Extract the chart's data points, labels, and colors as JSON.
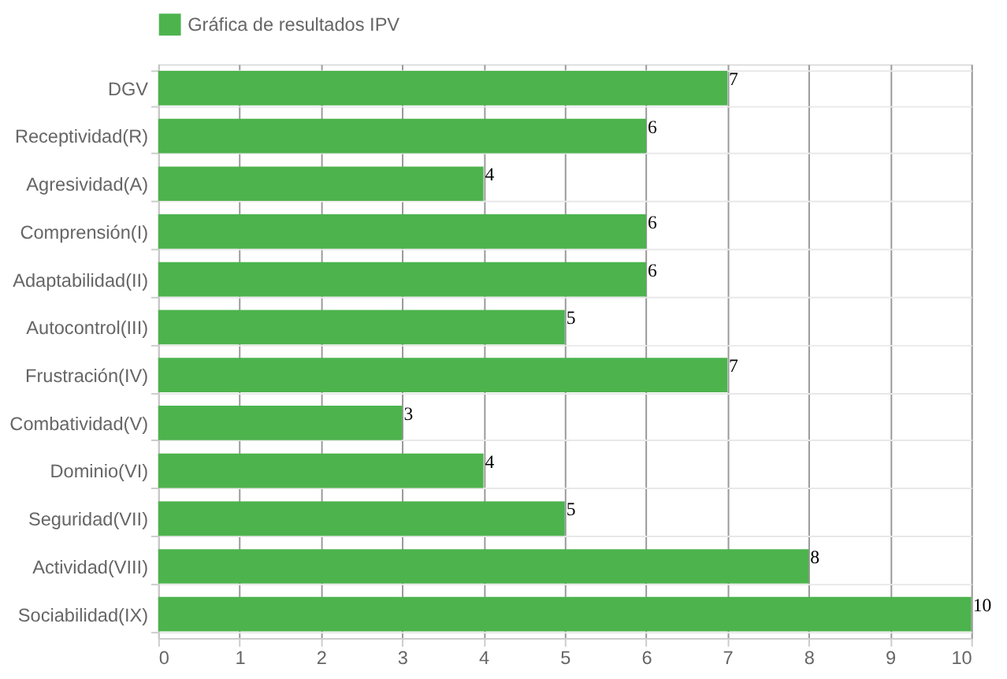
{
  "chart_data": {
    "type": "bar",
    "orientation": "horizontal",
    "categories": [
      "DGV",
      "Receptividad(R)",
      "Agresividad(A)",
      "Comprensión(I)",
      "Adaptabilidad(II)",
      "Autocontrol(III)",
      "Frustración(IV)",
      "Combatividad(V)",
      "Dominio(VI)",
      "Seguridad(VII)",
      "Actividad(VIII)",
      "Sociabilidad(IX)"
    ],
    "series": [
      {
        "name": "Gráfica de resultados IPV",
        "color": "#4db34d",
        "values": [
          7,
          6,
          4,
          6,
          6,
          5,
          7,
          3,
          4,
          5,
          8,
          10
        ]
      }
    ],
    "xlim": [
      0,
      10
    ],
    "xticks": [
      0,
      1,
      2,
      3,
      4,
      5,
      6,
      7,
      8,
      9,
      10
    ],
    "grid": true,
    "legend": "top",
    "data_labels": true
  }
}
